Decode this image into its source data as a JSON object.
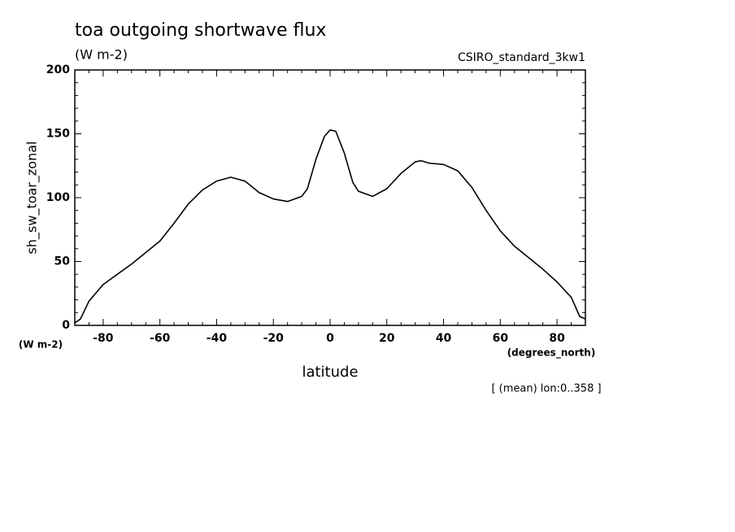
{
  "chart_data": {
    "type": "line",
    "title": "toa outgoing shortwave flux",
    "subtitle": "(W m-2)",
    "source": "CSIRO_standard_3kw1",
    "y_label": "sh_sw_toar_zonal",
    "y_units": "(W m-2)",
    "x_label": "latitude",
    "x_units": "(degrees_north)",
    "note": "[ (mean) lon:0..358 ]",
    "x": [
      -90,
      -88,
      -85,
      -80,
      -75,
      -70,
      -65,
      -60,
      -55,
      -50,
      -45,
      -40,
      -35,
      -30,
      -25,
      -20,
      -15,
      -10,
      -8,
      -5,
      -2,
      0,
      2,
      5,
      8,
      10,
      15,
      20,
      25,
      30,
      32,
      35,
      40,
      45,
      50,
      55,
      60,
      65,
      70,
      75,
      80,
      85,
      88,
      90
    ],
    "series": [
      {
        "name": "sh_sw_toar_zonal",
        "color": "#000000",
        "values": [
          2,
          5,
          19,
          32,
          40,
          48,
          57,
          66,
          80,
          95,
          106,
          113,
          116,
          113,
          104,
          99,
          97,
          101,
          107,
          130,
          148,
          153,
          152,
          135,
          112,
          105,
          101,
          107,
          119,
          128,
          129,
          127,
          126,
          121,
          108,
          90,
          74,
          62,
          53,
          44,
          34,
          22,
          7,
          5
        ]
      }
    ],
    "xlim": [
      -90,
      90
    ],
    "xticks": [
      -80,
      -60,
      -40,
      -20,
      0,
      20,
      40,
      60,
      80
    ],
    "ylim": [
      0,
      200
    ],
    "yticks": [
      0,
      50,
      100,
      150,
      200
    ],
    "x_minor_ticks": [
      -85,
      -75,
      -70,
      -65,
      -55,
      -50,
      -45,
      -35,
      -30,
      -25,
      -15,
      -10,
      -5,
      5,
      10,
      15,
      25,
      30,
      35,
      45,
      50,
      55,
      65,
      70,
      75,
      85
    ],
    "y_minor_ticks": [
      10,
      20,
      30,
      40,
      60,
      70,
      80,
      90,
      110,
      120,
      130,
      140,
      160,
      170,
      180,
      190
    ],
    "grid": false
  }
}
